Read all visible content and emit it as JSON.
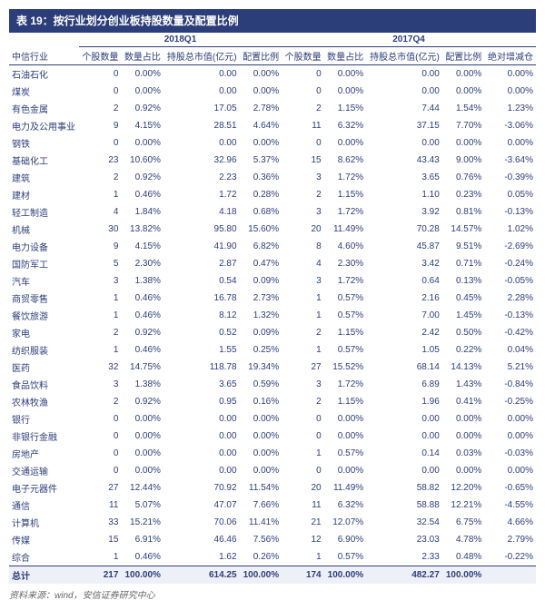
{
  "title": "表 19：按行业划分创业板持股数量及配置比例",
  "footnote": "资料来源：wind，安信证券研究中心",
  "period1": "2018Q1",
  "period2": "2017Q4",
  "headers": {
    "industry": "中信行业",
    "count": "个股数量",
    "pct": "数量占比",
    "mv": "持股总市值(亿元)",
    "alloc": "配置比例",
    "delta": "绝对增减仓"
  },
  "rows": [
    {
      "name": "石油石化",
      "c1": "0",
      "p1": "0.00%",
      "m1": "0.00",
      "a1": "0.00%",
      "c2": "0",
      "p2": "0.00%",
      "m2": "0.00",
      "a2": "0.00%",
      "d": "0.00%"
    },
    {
      "name": "煤炭",
      "c1": "0",
      "p1": "0.00%",
      "m1": "0.00",
      "a1": "0.00%",
      "c2": "0",
      "p2": "0.00%",
      "m2": "0.00",
      "a2": "0.00%",
      "d": "0.00%"
    },
    {
      "name": "有色金属",
      "c1": "2",
      "p1": "0.92%",
      "m1": "17.05",
      "a1": "2.78%",
      "c2": "2",
      "p2": "1.15%",
      "m2": "7.44",
      "a2": "1.54%",
      "d": "1.23%"
    },
    {
      "name": "电力及公用事业",
      "c1": "9",
      "p1": "4.15%",
      "m1": "28.51",
      "a1": "4.64%",
      "c2": "11",
      "p2": "6.32%",
      "m2": "37.15",
      "a2": "7.70%",
      "d": "-3.06%"
    },
    {
      "name": "钢铁",
      "c1": "0",
      "p1": "0.00%",
      "m1": "0.00",
      "a1": "0.00%",
      "c2": "0",
      "p2": "0.00%",
      "m2": "0.00",
      "a2": "0.00%",
      "d": "0.00%"
    },
    {
      "name": "基础化工",
      "c1": "23",
      "p1": "10.60%",
      "m1": "32.96",
      "a1": "5.37%",
      "c2": "15",
      "p2": "8.62%",
      "m2": "43.43",
      "a2": "9.00%",
      "d": "-3.64%"
    },
    {
      "name": "建筑",
      "c1": "2",
      "p1": "0.92%",
      "m1": "2.23",
      "a1": "0.36%",
      "c2": "3",
      "p2": "1.72%",
      "m2": "3.65",
      "a2": "0.76%",
      "d": "-0.39%"
    },
    {
      "name": "建材",
      "c1": "1",
      "p1": "0.46%",
      "m1": "1.72",
      "a1": "0.28%",
      "c2": "2",
      "p2": "1.15%",
      "m2": "1.10",
      "a2": "0.23%",
      "d": "0.05%"
    },
    {
      "name": "轻工制造",
      "c1": "4",
      "p1": "1.84%",
      "m1": "4.18",
      "a1": "0.68%",
      "c2": "3",
      "p2": "1.72%",
      "m2": "3.92",
      "a2": "0.81%",
      "d": "-0.13%"
    },
    {
      "name": "机械",
      "c1": "30",
      "p1": "13.82%",
      "m1": "95.80",
      "a1": "15.60%",
      "c2": "20",
      "p2": "11.49%",
      "m2": "70.28",
      "a2": "14.57%",
      "d": "1.02%"
    },
    {
      "name": "电力设备",
      "c1": "9",
      "p1": "4.15%",
      "m1": "41.90",
      "a1": "6.82%",
      "c2": "8",
      "p2": "4.60%",
      "m2": "45.87",
      "a2": "9.51%",
      "d": "-2.69%"
    },
    {
      "name": "国防军工",
      "c1": "5",
      "p1": "2.30%",
      "m1": "2.87",
      "a1": "0.47%",
      "c2": "4",
      "p2": "2.30%",
      "m2": "3.42",
      "a2": "0.71%",
      "d": "-0.24%"
    },
    {
      "name": "汽车",
      "c1": "3",
      "p1": "1.38%",
      "m1": "0.54",
      "a1": "0.09%",
      "c2": "3",
      "p2": "1.72%",
      "m2": "0.64",
      "a2": "0.13%",
      "d": "-0.05%"
    },
    {
      "name": "商贸零售",
      "c1": "1",
      "p1": "0.46%",
      "m1": "16.78",
      "a1": "2.73%",
      "c2": "1",
      "p2": "0.57%",
      "m2": "2.16",
      "a2": "0.45%",
      "d": "2.28%"
    },
    {
      "name": "餐饮旅游",
      "c1": "1",
      "p1": "0.46%",
      "m1": "8.12",
      "a1": "1.32%",
      "c2": "1",
      "p2": "0.57%",
      "m2": "7.00",
      "a2": "1.45%",
      "d": "-0.13%"
    },
    {
      "name": "家电",
      "c1": "2",
      "p1": "0.92%",
      "m1": "0.52",
      "a1": "0.09%",
      "c2": "2",
      "p2": "1.15%",
      "m2": "2.42",
      "a2": "0.50%",
      "d": "-0.42%"
    },
    {
      "name": "纺织服装",
      "c1": "1",
      "p1": "0.46%",
      "m1": "1.55",
      "a1": "0.25%",
      "c2": "1",
      "p2": "0.57%",
      "m2": "1.05",
      "a2": "0.22%",
      "d": "0.04%"
    },
    {
      "name": "医药",
      "c1": "32",
      "p1": "14.75%",
      "m1": "118.78",
      "a1": "19.34%",
      "c2": "27",
      "p2": "15.52%",
      "m2": "68.14",
      "a2": "14.13%",
      "d": "5.21%"
    },
    {
      "name": "食品饮料",
      "c1": "3",
      "p1": "1.38%",
      "m1": "3.65",
      "a1": "0.59%",
      "c2": "3",
      "p2": "1.72%",
      "m2": "6.89",
      "a2": "1.43%",
      "d": "-0.84%"
    },
    {
      "name": "农林牧渔",
      "c1": "2",
      "p1": "0.92%",
      "m1": "0.95",
      "a1": "0.16%",
      "c2": "2",
      "p2": "1.15%",
      "m2": "1.96",
      "a2": "0.41%",
      "d": "-0.25%"
    },
    {
      "name": "银行",
      "c1": "0",
      "p1": "0.00%",
      "m1": "0.00",
      "a1": "0.00%",
      "c2": "0",
      "p2": "0.00%",
      "m2": "0.00",
      "a2": "0.00%",
      "d": "0.00%"
    },
    {
      "name": "非银行金融",
      "c1": "0",
      "p1": "0.00%",
      "m1": "0.00",
      "a1": "0.00%",
      "c2": "0",
      "p2": "0.00%",
      "m2": "0.00",
      "a2": "0.00%",
      "d": "0.00%"
    },
    {
      "name": "房地产",
      "c1": "0",
      "p1": "0.00%",
      "m1": "0.00",
      "a1": "0.00%",
      "c2": "1",
      "p2": "0.57%",
      "m2": "0.14",
      "a2": "0.03%",
      "d": "-0.03%"
    },
    {
      "name": "交通运输",
      "c1": "0",
      "p1": "0.00%",
      "m1": "0.00",
      "a1": "0.00%",
      "c2": "0",
      "p2": "0.00%",
      "m2": "0.00",
      "a2": "0.00%",
      "d": "0.00%"
    },
    {
      "name": "电子元器件",
      "c1": "27",
      "p1": "12.44%",
      "m1": "70.92",
      "a1": "11.54%",
      "c2": "20",
      "p2": "11.49%",
      "m2": "58.82",
      "a2": "12.20%",
      "d": "-0.65%"
    },
    {
      "name": "通信",
      "c1": "11",
      "p1": "5.07%",
      "m1": "47.07",
      "a1": "7.66%",
      "c2": "11",
      "p2": "6.32%",
      "m2": "58.88",
      "a2": "12.21%",
      "d": "-4.55%"
    },
    {
      "name": "计算机",
      "c1": "33",
      "p1": "15.21%",
      "m1": "70.06",
      "a1": "11.41%",
      "c2": "21",
      "p2": "12.07%",
      "m2": "32.54",
      "a2": "6.75%",
      "d": "4.66%"
    },
    {
      "name": "传媒",
      "c1": "15",
      "p1": "6.91%",
      "m1": "46.46",
      "a1": "7.56%",
      "c2": "12",
      "p2": "6.90%",
      "m2": "23.03",
      "a2": "4.78%",
      "d": "2.79%"
    },
    {
      "name": "综合",
      "c1": "1",
      "p1": "0.46%",
      "m1": "1.62",
      "a1": "0.26%",
      "c2": "1",
      "p2": "0.57%",
      "m2": "2.33",
      "a2": "0.48%",
      "d": "-0.22%"
    }
  ],
  "total": {
    "name": "总计",
    "c1": "217",
    "p1": "100.00%",
    "m1": "614.25",
    "a1": "100.00%",
    "c2": "174",
    "p2": "100.00%",
    "m2": "482.27",
    "a2": "100.00%",
    "d": ""
  }
}
